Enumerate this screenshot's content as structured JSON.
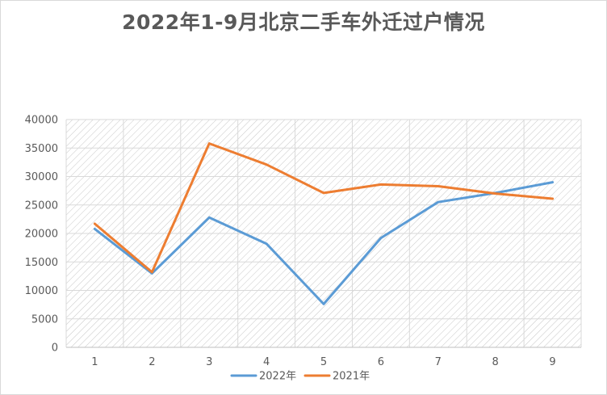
{
  "chart_data": {
    "type": "line",
    "title": "2022年1-9月北京二手车外迁过户情况",
    "categories": [
      "1",
      "2",
      "3",
      "4",
      "5",
      "6",
      "7",
      "8",
      "9"
    ],
    "ylim": [
      0,
      40000
    ],
    "yticks": [
      0,
      5000,
      10000,
      15000,
      20000,
      25000,
      30000,
      35000,
      40000
    ],
    "grid": true,
    "legend_position": "bottom",
    "series": [
      {
        "name": "2022年",
        "color": "#5b9bd5",
        "values": [
          20800,
          13000,
          22800,
          18200,
          7600,
          19200,
          25500,
          27100,
          29000
        ]
      },
      {
        "name": "2021年",
        "color": "#ed7d31",
        "values": [
          21700,
          13200,
          35800,
          32100,
          27100,
          28600,
          28300,
          27000,
          26100
        ]
      }
    ]
  }
}
